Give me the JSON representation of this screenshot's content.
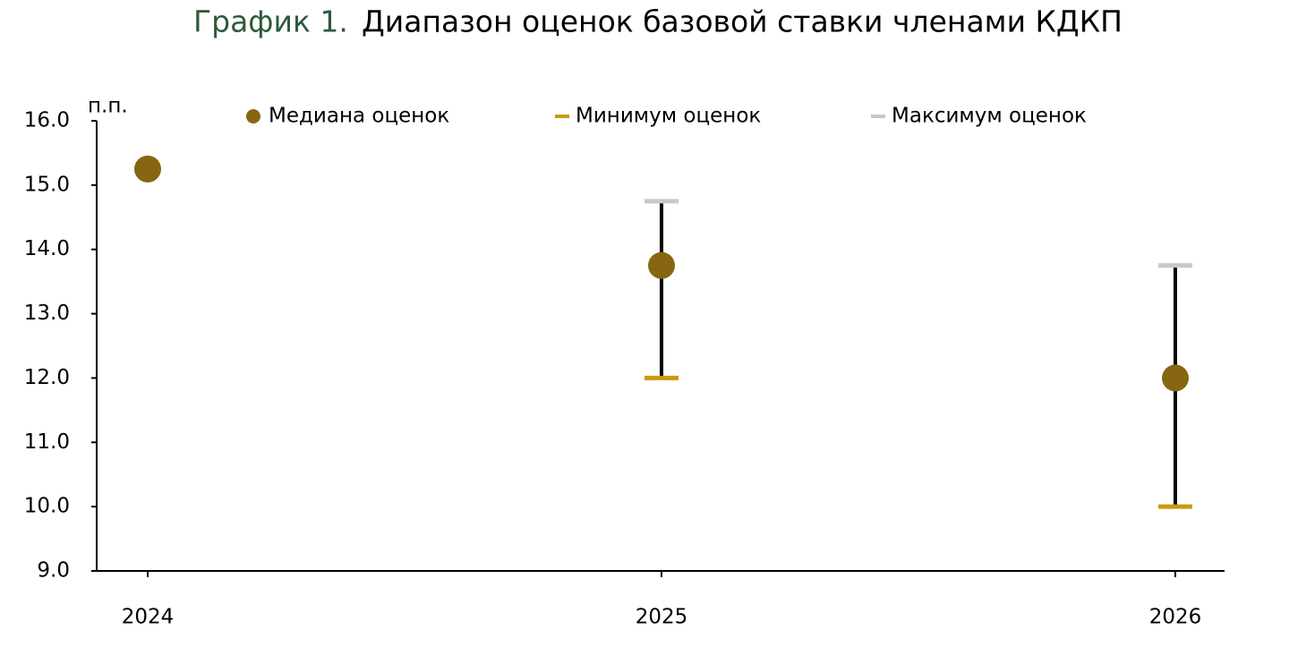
{
  "chart_data": {
    "type": "errorbar",
    "title_prefix": "График 1.",
    "title": "Диапазон оценок базовой ставки членами КДКП",
    "y_label": "п.п.",
    "categories": [
      "2024",
      "2025",
      "2026"
    ],
    "series": [
      {
        "name": "Медиана оценок",
        "color": "#876611",
        "values": [
          15.25,
          13.75,
          12.0
        ]
      },
      {
        "name": "Минимум оценок",
        "color": "#c99a0e",
        "values": [
          null,
          12.0,
          10.0
        ]
      },
      {
        "name": "Максимум оценок",
        "color": "#c8c8c8",
        "values": [
          null,
          14.75,
          13.75
        ]
      }
    ],
    "whisker_color": "#000000",
    "title_prefix_color": "#2e5a3a",
    "ylim": [
      9,
      16
    ],
    "yticks": [
      {
        "value": 9,
        "label": "9.0"
      },
      {
        "value": 10,
        "label": "10.0"
      },
      {
        "value": 11,
        "label": "11.0"
      },
      {
        "value": 12,
        "label": "12.0"
      },
      {
        "value": 13,
        "label": "13.0"
      },
      {
        "value": 14,
        "label": "14.0"
      },
      {
        "value": 15,
        "label": "15.0"
      },
      {
        "value": 16,
        "label": "16.0"
      }
    ],
    "grid": false
  }
}
